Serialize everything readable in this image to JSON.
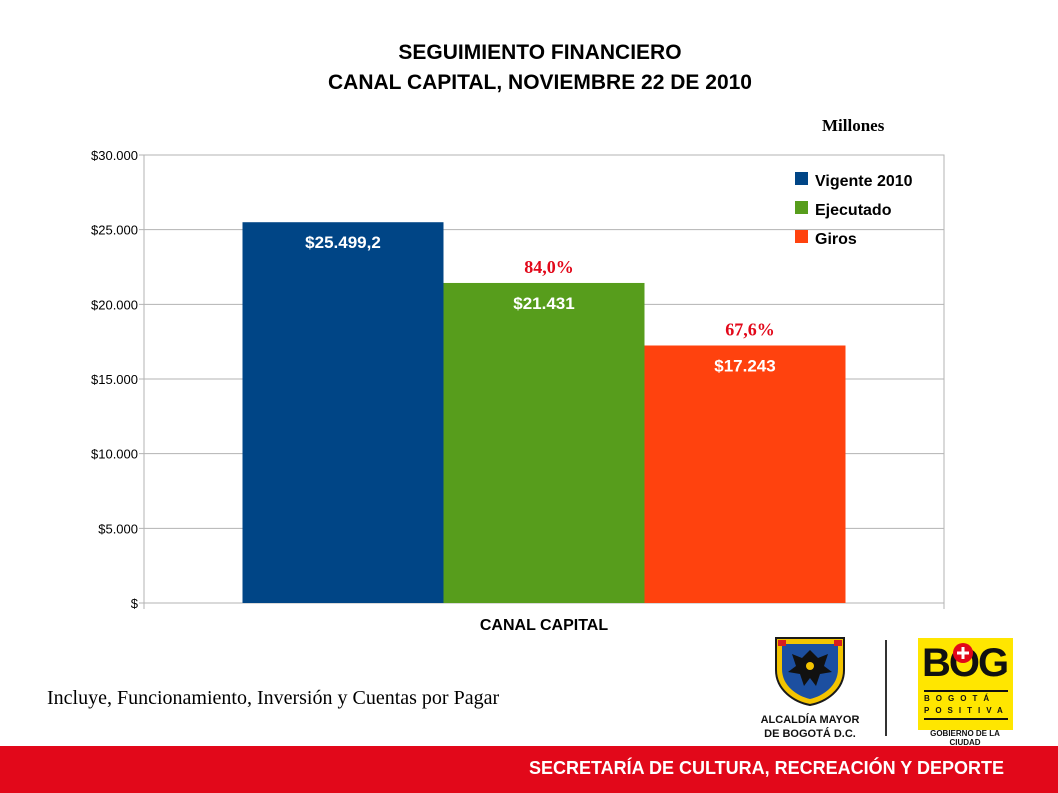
{
  "header": {
    "title_line1": "SEGUIMIENTO FINANCIERO",
    "title_line2": "CANAL CAPITAL, NOVIEMBRE 22 DE 2010",
    "units": "Millones"
  },
  "chart_data": {
    "type": "bar",
    "title": "SEGUIMIENTO FINANCIERO CANAL CAPITAL, NOVIEMBRE 22 DE 2010",
    "categories": [
      "CANAL CAPITAL"
    ],
    "ylim": [
      0,
      30000
    ],
    "yticks": [
      0,
      5000,
      10000,
      15000,
      20000,
      25000,
      30000
    ],
    "ytick_labels": [
      "$",
      "$5.000",
      "$10.000",
      "$15.000",
      "$20.000",
      "$25.000",
      "$30.000"
    ],
    "grid": true,
    "legend_position": "top-right",
    "series": [
      {
        "name": "Vigente 2010",
        "values": [
          25499.2
        ],
        "label": "$25.499,2",
        "color": "#004586",
        "percent": ""
      },
      {
        "name": "Ejecutado",
        "values": [
          21431
        ],
        "label": "$21.431",
        "color": "#579d1c",
        "percent": "84,0%"
      },
      {
        "name": "Giros",
        "values": [
          17243
        ],
        "label": "$17.243",
        "color": "#ff420e",
        "percent": "67,6%"
      }
    ],
    "percent_color": "#e2081a"
  },
  "note": "Incluye, Funcionamiento, Inversión y   Cuentas por Pagar",
  "logos": {
    "alcaldia_line1": "ALCALDÍA MAYOR",
    "alcaldia_line2": "DE BOGOTÁ D.C.",
    "bog_big": "BOG",
    "bog_line1": "BOGOTÁ",
    "bog_line2": "POSITIVA",
    "gobierno": "GOBIERNO DE LA CIUDAD"
  },
  "footer": {
    "text": "SECRETARÍA DE CULTURA, RECREACIÓN Y DEPORTE",
    "color": "#e2081a"
  }
}
